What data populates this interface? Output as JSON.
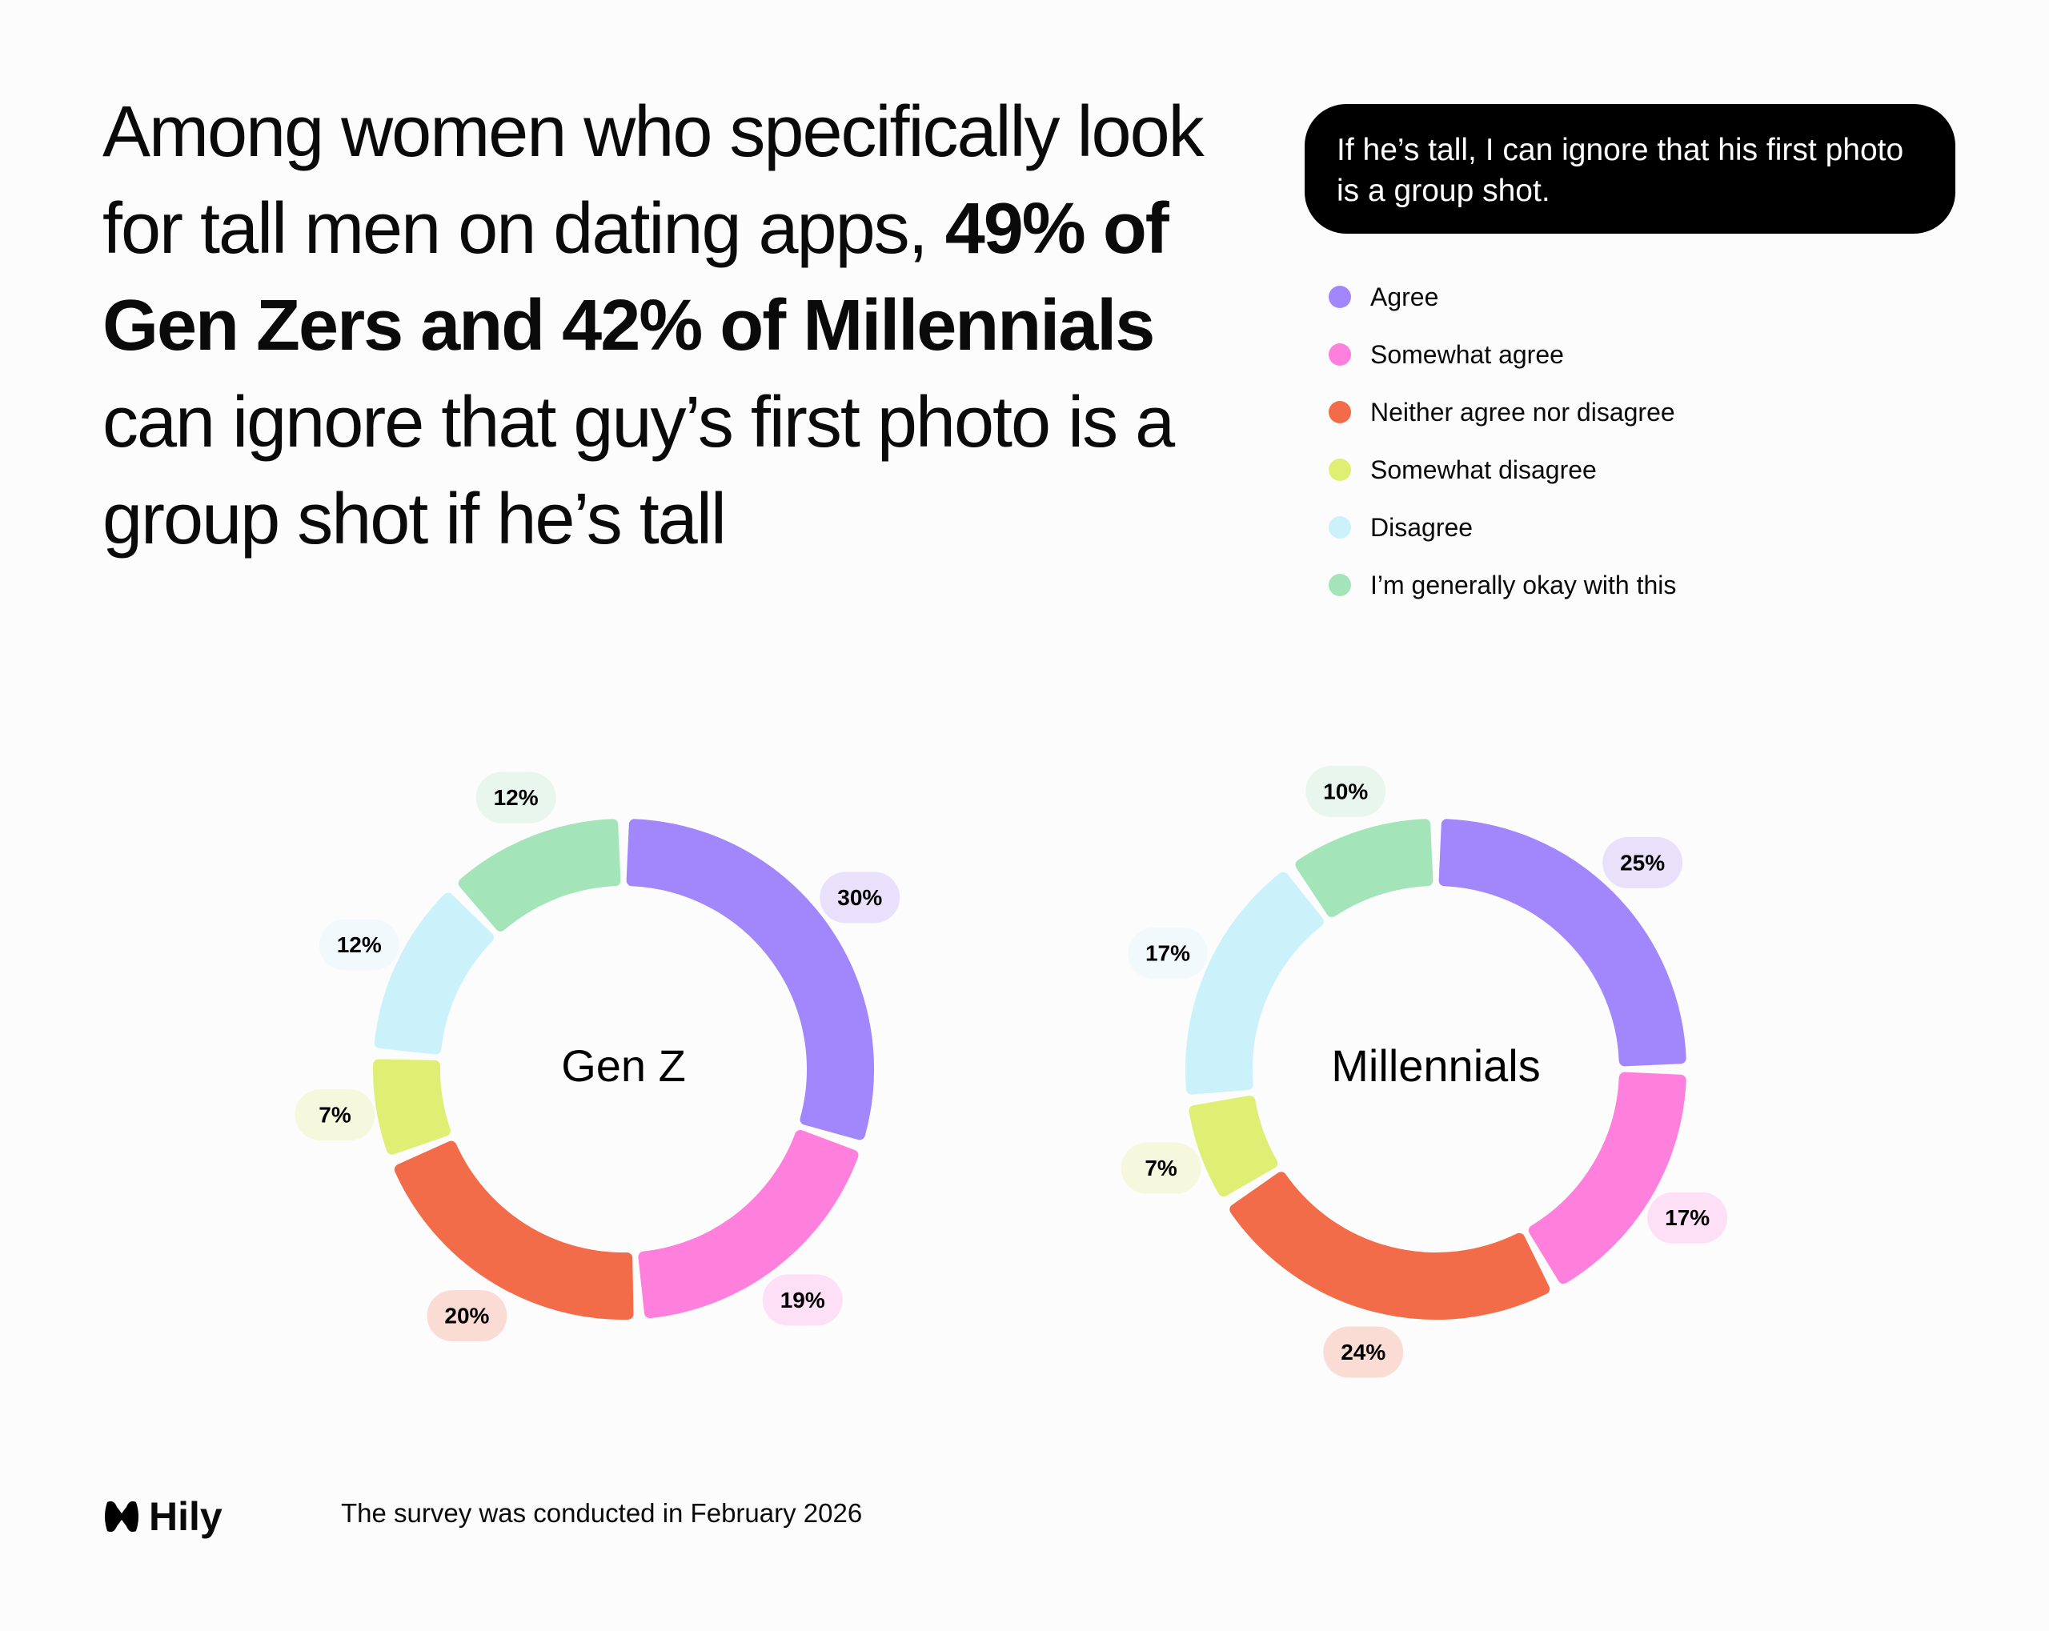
{
  "headline": [
    {
      "text": "Among women who specifically look for tall men on dating apps, ",
      "bold": false
    },
    {
      "text": "49% of Gen Zers and 42% of Millennials",
      "bold": true
    },
    {
      "text": " can ignore that guy’s first photo is a group shot if he’s tall",
      "bold": false
    }
  ],
  "question": "If he’s tall, I can ignore that his first photo is a group shot.",
  "logo": "Hily",
  "footnote": "The survey was conducted in February 2026",
  "chart_data": [
    {
      "type": "donut",
      "title": "Gen Z",
      "categories": [
        "Agree",
        "Somewhat agree",
        "Neither agree nor disagree",
        "Somewhat disagree",
        "Disagree",
        "I’m generally okay with this"
      ],
      "values": [
        30,
        19,
        20,
        7,
        12,
        12
      ],
      "value_labels": [
        "30%",
        "19%",
        "20%",
        "7%",
        "12%",
        "12%"
      ],
      "colors": [
        "#a286fb",
        "#ff7fdc",
        "#f26c4a",
        "#dfef73",
        "#cbf1fb",
        "#a3e4b9"
      ]
    },
    {
      "type": "donut",
      "title": "Millennials",
      "categories": [
        "Agree",
        "Somewhat agree",
        "Neither agree nor disagree",
        "Somewhat disagree",
        "Disagree",
        "I’m generally okay with this"
      ],
      "values": [
        25,
        17,
        24,
        7,
        17,
        10
      ],
      "value_labels": [
        "25%",
        "17%",
        "24%",
        "7%",
        "17%",
        "10%"
      ],
      "colors": [
        "#a286fb",
        "#ff7fdc",
        "#f26c4a",
        "#dfef73",
        "#cbf1fb",
        "#a3e4b9"
      ]
    }
  ]
}
